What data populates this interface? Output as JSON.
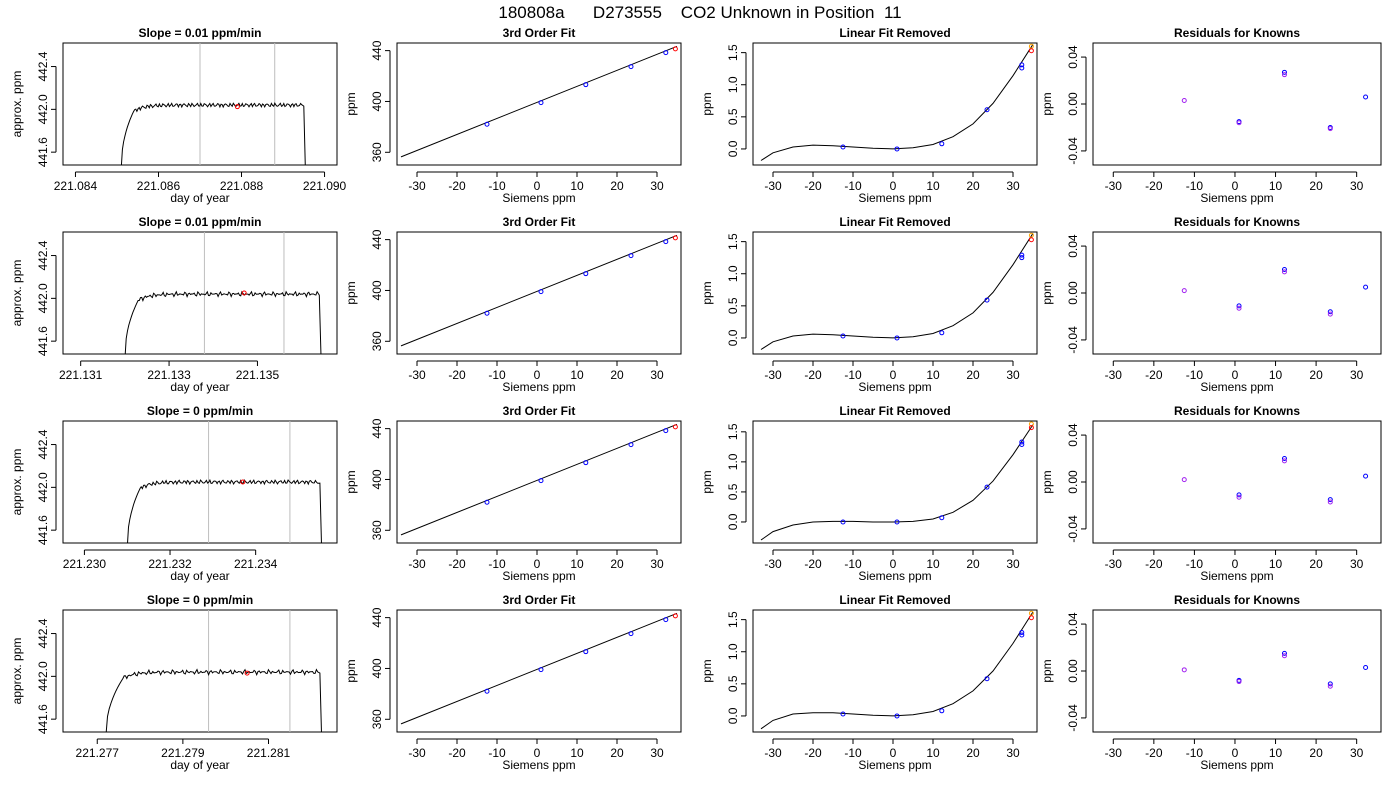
{
  "figure": {
    "title": "180808a      D273555    CO2 Unknown in Position  11"
  },
  "colors": {
    "trace": "#000000",
    "vline": "#bebebe",
    "point": "#0000ff",
    "point2": "#a020f0",
    "mark": "#ff0000",
    "flag": "#ffa500"
  },
  "chart_data": [
    {
      "type": "line",
      "panel": "timeseries",
      "title": "Slope =  0.01  ppm/min",
      "xlabel": "day of year",
      "ylabel": "approx. ppm",
      "xlim": [
        221.0837,
        221.0903
      ],
      "ylim": [
        441.48,
        442.62
      ],
      "xticks": [
        221.084,
        221.086,
        221.088,
        221.09
      ],
      "xtick_labels": [
        "221.084",
        "221.086",
        "221.088",
        "221.090"
      ],
      "yticks": [
        441.6,
        442.0,
        442.4
      ],
      "ytick_labels": [
        "441.6",
        "442.0",
        "442.4"
      ],
      "vlines": [
        221.087,
        221.0888
      ],
      "start": 221.0851,
      "rise_end": 221.0854,
      "end": 221.0895,
      "plateau": 442.04,
      "marker": [
        221.0879,
        442.025
      ]
    },
    {
      "type": "scatter",
      "panel": "fit",
      "title": "3rd Order Fit",
      "xlabel": "Siemens ppm",
      "ylabel": "ppm",
      "xlim": [
        -35,
        36
      ],
      "ylim": [
        350,
        446
      ],
      "xticks": [
        -30,
        -20,
        -10,
        0,
        10,
        20,
        30
      ],
      "xtick_labels": [
        "-30",
        "-20",
        "-10",
        "0",
        "10",
        "20",
        "30"
      ],
      "yticks": [
        360,
        400,
        440
      ],
      "ytick_labels": [
        "360",
        "400",
        "440"
      ],
      "line": [
        [
          -34,
          356.4
        ],
        [
          35,
          443.4
        ]
      ],
      "points": [
        [
          -12.5,
          382.1
        ],
        [
          1.0,
          399.1
        ],
        [
          12.2,
          413.2
        ],
        [
          23.5,
          427.4
        ],
        [
          32.2,
          438.4
        ]
      ],
      "marker": [
        34.6,
        441.4
      ]
    },
    {
      "type": "line",
      "panel": "linear-removed",
      "title": "Linear Fit Removed",
      "xlabel": "Siemens ppm",
      "ylabel": "ppm",
      "xlim": [
        -35,
        36
      ],
      "ylim": [
        -0.25,
        1.65
      ],
      "xticks": [
        -30,
        -20,
        -10,
        0,
        10,
        20,
        30
      ],
      "xtick_labels": [
        "-30",
        "-20",
        "-10",
        "0",
        "10",
        "20",
        "30"
      ],
      "yticks": [
        0.0,
        0.5,
        1.0,
        1.5
      ],
      "ytick_labels": [
        "0.0",
        "0.5",
        "1.0",
        "1.5"
      ],
      "curve_x": [
        -33,
        -30,
        -25,
        -20,
        -15,
        -10,
        -5,
        0,
        5,
        10,
        15,
        20,
        25,
        30,
        35
      ],
      "curve_y": [
        -0.18,
        -0.06,
        0.03,
        0.06,
        0.05,
        0.03,
        0.01,
        0.0,
        0.02,
        0.07,
        0.19,
        0.39,
        0.71,
        1.14,
        1.63
      ],
      "points": [
        [
          -12.5,
          0.03
        ],
        [
          1.0,
          0.0
        ],
        [
          12.2,
          0.08
        ],
        [
          23.5,
          0.61
        ],
        [
          32.2,
          1.26
        ],
        [
          32.2,
          1.31
        ]
      ],
      "marker": [
        34.6,
        1.53
      ],
      "flag": [
        34.6,
        1.6
      ]
    },
    {
      "type": "scatter",
      "panel": "residuals",
      "title": "Residuals for Knowns",
      "xlabel": "Siemens ppm",
      "ylabel": "ppm",
      "xlim": [
        -35,
        36
      ],
      "ylim": [
        -0.052,
        0.052
      ],
      "xticks": [
        -30,
        -20,
        -10,
        0,
        10,
        20,
        30
      ],
      "xtick_labels": [
        "-30",
        "-20",
        "-10",
        "0",
        "10",
        "20",
        "30"
      ],
      "yticks": [
        -0.04,
        0.0,
        0.04
      ],
      "ytick_labels": [
        "-0.04",
        "0.00",
        "0.04"
      ],
      "points": [
        [
          -12.5,
          0.003
        ],
        [
          1.0,
          -0.015
        ],
        [
          1.0,
          -0.016
        ],
        [
          12.2,
          0.027
        ],
        [
          12.2,
          0.025
        ],
        [
          23.5,
          -0.02
        ],
        [
          23.5,
          -0.021
        ],
        [
          32.2,
          0.006
        ]
      ]
    },
    {
      "type": "line",
      "panel": "timeseries",
      "title": "Slope =  0.01  ppm/min",
      "xlabel": "day of year",
      "ylabel": "approx. ppm",
      "xlim": [
        221.1306,
        221.1368
      ],
      "ylim": [
        441.48,
        442.62
      ],
      "xticks": [
        221.131,
        221.133,
        221.135
      ],
      "xtick_labels": [
        "221.131",
        "221.133",
        "221.135"
      ],
      "yticks": [
        441.6,
        442.0,
        442.4
      ],
      "ytick_labels": [
        "441.6",
        "442.0",
        "442.4"
      ],
      "vlines": [
        221.1338,
        221.1356
      ],
      "start": 221.132,
      "rise_end": 221.1323,
      "end": 221.1364,
      "plateau": 442.04,
      "marker": [
        221.1347,
        442.05
      ]
    },
    {
      "type": "scatter",
      "panel": "fit",
      "title": "3rd Order Fit",
      "xlabel": "Siemens ppm",
      "ylabel": "ppm",
      "xlim": [
        -35,
        36
      ],
      "ylim": [
        350,
        446
      ],
      "xticks": [
        -30,
        -20,
        -10,
        0,
        10,
        20,
        30
      ],
      "xtick_labels": [
        "-30",
        "-20",
        "-10",
        "0",
        "10",
        "20",
        "30"
      ],
      "yticks": [
        360,
        400,
        440
      ],
      "ytick_labels": [
        "360",
        "400",
        "440"
      ],
      "line": [
        [
          -34,
          356.4
        ],
        [
          35,
          443.4
        ]
      ],
      "points": [
        [
          -12.5,
          382.1
        ],
        [
          1.0,
          399.1
        ],
        [
          12.2,
          413.2
        ],
        [
          23.5,
          427.4
        ],
        [
          32.2,
          438.4
        ]
      ],
      "marker": [
        34.6,
        441.4
      ]
    },
    {
      "type": "line",
      "panel": "linear-removed",
      "title": "Linear Fit Removed",
      "xlabel": "Siemens ppm",
      "ylabel": "ppm",
      "xlim": [
        -35,
        36
      ],
      "ylim": [
        -0.25,
        1.65
      ],
      "xticks": [
        -30,
        -20,
        -10,
        0,
        10,
        20,
        30
      ],
      "xtick_labels": [
        "-30",
        "-20",
        "-10",
        "0",
        "10",
        "20",
        "30"
      ],
      "yticks": [
        0.0,
        0.5,
        1.0,
        1.5
      ],
      "ytick_labels": [
        "0.0",
        "0.5",
        "1.0",
        "1.5"
      ],
      "curve_x": [
        -33,
        -30,
        -25,
        -20,
        -15,
        -10,
        -5,
        0,
        5,
        10,
        15,
        20,
        25,
        30,
        35
      ],
      "curve_y": [
        -0.18,
        -0.06,
        0.03,
        0.06,
        0.05,
        0.03,
        0.01,
        0.0,
        0.02,
        0.07,
        0.19,
        0.39,
        0.71,
        1.14,
        1.63
      ],
      "points": [
        [
          -12.5,
          0.03
        ],
        [
          1.0,
          0.0
        ],
        [
          12.2,
          0.08
        ],
        [
          23.5,
          0.59
        ],
        [
          32.2,
          1.25
        ],
        [
          32.2,
          1.29
        ]
      ],
      "marker": [
        34.6,
        1.53
      ],
      "flag": [
        34.6,
        1.6
      ]
    },
    {
      "type": "scatter",
      "panel": "residuals",
      "title": "Residuals for Knowns",
      "xlabel": "Siemens ppm",
      "ylabel": "ppm",
      "xlim": [
        -35,
        36
      ],
      "ylim": [
        -0.052,
        0.052
      ],
      "xticks": [
        -30,
        -20,
        -10,
        0,
        10,
        20,
        30
      ],
      "xtick_labels": [
        "-30",
        "-20",
        "-10",
        "0",
        "10",
        "20",
        "30"
      ],
      "yticks": [
        -0.04,
        0.0,
        0.04
      ],
      "ytick_labels": [
        "-0.04",
        "0.00",
        "0.04"
      ],
      "points": [
        [
          -12.5,
          0.002
        ],
        [
          1.0,
          -0.011
        ],
        [
          1.0,
          -0.013
        ],
        [
          12.2,
          0.02
        ],
        [
          12.2,
          0.018
        ],
        [
          23.5,
          -0.016
        ],
        [
          23.5,
          -0.018
        ],
        [
          32.2,
          0.005
        ]
      ]
    },
    {
      "type": "line",
      "panel": "timeseries",
      "title": "Slope =  0  ppm/min",
      "xlabel": "day of year",
      "ylabel": "approx. ppm",
      "xlim": [
        221.2295,
        221.2359
      ],
      "ylim": [
        441.48,
        442.62
      ],
      "xticks": [
        221.23,
        221.232,
        221.234
      ],
      "xtick_labels": [
        "221.230",
        "221.232",
        "221.234"
      ],
      "yticks": [
        441.6,
        442.0,
        442.4
      ],
      "ytick_labels": [
        "441.6",
        "442.0",
        "442.4"
      ],
      "vlines": [
        221.2329,
        221.2348
      ],
      "start": 221.231,
      "rise_end": 221.2313,
      "end": 221.2355,
      "plateau": 442.05,
      "marker": [
        221.2337,
        442.05
      ]
    },
    {
      "type": "scatter",
      "panel": "fit",
      "title": "3rd Order Fit",
      "xlabel": "Siemens ppm",
      "ylabel": "ppm",
      "xlim": [
        -35,
        36
      ],
      "ylim": [
        350,
        446
      ],
      "xticks": [
        -30,
        -20,
        -10,
        0,
        10,
        20,
        30
      ],
      "xtick_labels": [
        "-30",
        "-20",
        "-10",
        "0",
        "10",
        "20",
        "30"
      ],
      "yticks": [
        360,
        400,
        440
      ],
      "ytick_labels": [
        "360",
        "400",
        "440"
      ],
      "line": [
        [
          -34,
          356.4
        ],
        [
          35,
          443.4
        ]
      ],
      "points": [
        [
          -12.5,
          382.1
        ],
        [
          1.0,
          399.1
        ],
        [
          12.2,
          413.2
        ],
        [
          23.5,
          427.4
        ],
        [
          32.2,
          438.4
        ]
      ],
      "marker": [
        34.6,
        441.4
      ]
    },
    {
      "type": "line",
      "panel": "linear-removed",
      "title": "Linear Fit Removed",
      "xlabel": "Siemens ppm",
      "ylabel": "ppm",
      "xlim": [
        -35,
        36
      ],
      "ylim": [
        -0.35,
        1.68
      ],
      "xticks": [
        -30,
        -20,
        -10,
        0,
        10,
        20,
        30
      ],
      "xtick_labels": [
        "-30",
        "-20",
        "-10",
        "0",
        "10",
        "20",
        "30"
      ],
      "yticks": [
        0.0,
        0.5,
        1.0,
        1.5
      ],
      "ytick_labels": [
        "0.0",
        "0.5",
        "1.0",
        "1.5"
      ],
      "curve_x": [
        -33,
        -30,
        -25,
        -20,
        -15,
        -10,
        -5,
        0,
        5,
        10,
        15,
        20,
        25,
        30,
        35
      ],
      "curve_y": [
        -0.3,
        -0.16,
        -0.05,
        0.0,
        0.01,
        0.01,
        0.0,
        0.0,
        0.01,
        0.05,
        0.16,
        0.36,
        0.68,
        1.12,
        1.62
      ],
      "points": [
        [
          -12.5,
          0.0
        ],
        [
          1.0,
          0.0
        ],
        [
          12.2,
          0.07
        ],
        [
          23.5,
          0.58
        ],
        [
          32.2,
          1.29
        ],
        [
          32.2,
          1.33
        ]
      ],
      "marker": [
        34.6,
        1.57
      ],
      "flag": [
        34.6,
        1.63
      ]
    },
    {
      "type": "scatter",
      "panel": "residuals",
      "title": "Residuals for Knowns",
      "xlabel": "Siemens ppm",
      "ylabel": "ppm",
      "xlim": [
        -35,
        36
      ],
      "ylim": [
        -0.052,
        0.052
      ],
      "xticks": [
        -30,
        -20,
        -10,
        0,
        10,
        20,
        30
      ],
      "xtick_labels": [
        "-30",
        "-20",
        "-10",
        "0",
        "10",
        "20",
        "30"
      ],
      "yticks": [
        -0.04,
        0.0,
        0.04
      ],
      "ytick_labels": [
        "-0.04",
        "0.00",
        "0.04"
      ],
      "points": [
        [
          -12.5,
          0.002
        ],
        [
          1.0,
          -0.011
        ],
        [
          1.0,
          -0.013
        ],
        [
          12.2,
          0.02
        ],
        [
          12.2,
          0.018
        ],
        [
          23.5,
          -0.015
        ],
        [
          23.5,
          -0.017
        ],
        [
          32.2,
          0.005
        ]
      ]
    },
    {
      "type": "line",
      "panel": "timeseries",
      "title": "Slope =  0  ppm/min",
      "xlabel": "day of year",
      "ylabel": "approx. ppm",
      "xlim": [
        221.2762,
        221.2826
      ],
      "ylim": [
        441.48,
        442.62
      ],
      "xticks": [
        221.277,
        221.279,
        221.281
      ],
      "xtick_labels": [
        "221.277",
        "221.279",
        "221.281"
      ],
      "yticks": [
        441.6,
        442.0,
        442.4
      ],
      "ytick_labels": [
        "441.6",
        "442.0",
        "442.4"
      ],
      "vlines": [
        221.2796,
        221.2815
      ],
      "start": 221.2772,
      "rise_end": 221.2776,
      "end": 221.2822,
      "plateau": 442.04,
      "marker": [
        221.2805,
        442.03
      ]
    },
    {
      "type": "scatter",
      "panel": "fit",
      "title": "3rd Order Fit",
      "xlabel": "Siemens ppm",
      "ylabel": "ppm",
      "xlim": [
        -35,
        36
      ],
      "ylim": [
        350,
        446
      ],
      "xticks": [
        -30,
        -20,
        -10,
        0,
        10,
        20,
        30
      ],
      "xtick_labels": [
        "-30",
        "-20",
        "-10",
        "0",
        "10",
        "20",
        "30"
      ],
      "yticks": [
        360,
        400,
        440
      ],
      "ytick_labels": [
        "360",
        "400",
        "440"
      ],
      "line": [
        [
          -34,
          356.4
        ],
        [
          35,
          443.4
        ]
      ],
      "points": [
        [
          -12.5,
          382.1
        ],
        [
          1.0,
          399.1
        ],
        [
          12.2,
          413.2
        ],
        [
          23.5,
          427.4
        ],
        [
          32.2,
          438.4
        ]
      ],
      "marker": [
        34.6,
        441.4
      ]
    },
    {
      "type": "line",
      "panel": "linear-removed",
      "title": "Linear Fit Removed",
      "xlabel": "Siemens ppm",
      "ylabel": "ppm",
      "xlim": [
        -35,
        36
      ],
      "ylim": [
        -0.25,
        1.65
      ],
      "xticks": [
        -30,
        -20,
        -10,
        0,
        10,
        20,
        30
      ],
      "xtick_labels": [
        "-30",
        "-20",
        "-10",
        "0",
        "10",
        "20",
        "30"
      ],
      "yticks": [
        0.0,
        0.5,
        1.0,
        1.5
      ],
      "ytick_labels": [
        "0.0",
        "0.5",
        "1.0",
        "1.5"
      ],
      "curve_x": [
        -33,
        -30,
        -25,
        -20,
        -15,
        -10,
        -5,
        0,
        5,
        10,
        15,
        20,
        25,
        30,
        35
      ],
      "curve_y": [
        -0.2,
        -0.07,
        0.03,
        0.05,
        0.05,
        0.03,
        0.01,
        0.0,
        0.02,
        0.07,
        0.19,
        0.39,
        0.7,
        1.13,
        1.62
      ],
      "points": [
        [
          -12.5,
          0.03
        ],
        [
          1.0,
          0.0
        ],
        [
          12.2,
          0.08
        ],
        [
          23.5,
          0.58
        ],
        [
          32.2,
          1.26
        ],
        [
          32.2,
          1.3
        ]
      ],
      "marker": [
        34.6,
        1.53
      ],
      "flag": [
        34.6,
        1.6
      ]
    },
    {
      "type": "scatter",
      "panel": "residuals",
      "title": "Residuals for Knowns",
      "xlabel": "Siemens ppm",
      "ylabel": "ppm",
      "xlim": [
        -35,
        36
      ],
      "ylim": [
        -0.052,
        0.052
      ],
      "xticks": [
        -30,
        -20,
        -10,
        0,
        10,
        20,
        30
      ],
      "xtick_labels": [
        "-30",
        "-20",
        "-10",
        "0",
        "10",
        "20",
        "30"
      ],
      "yticks": [
        -0.04,
        0.0,
        0.04
      ],
      "ytick_labels": [
        "-0.04",
        "0.00",
        "0.04"
      ],
      "points": [
        [
          -12.5,
          0.001
        ],
        [
          1.0,
          -0.008
        ],
        [
          1.0,
          -0.009
        ],
        [
          12.2,
          0.015
        ],
        [
          12.2,
          0.013
        ],
        [
          23.5,
          -0.011
        ],
        [
          23.5,
          -0.013
        ],
        [
          32.2,
          0.003
        ]
      ]
    }
  ]
}
